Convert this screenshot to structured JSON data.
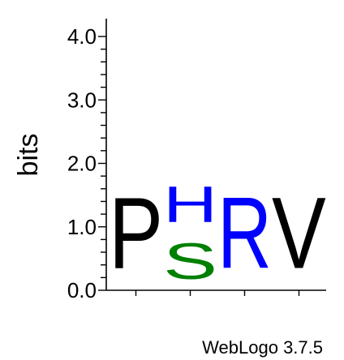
{
  "chart_data": {
    "type": "sequence-logo",
    "ylabel": "bits",
    "ylim": [
      0.0,
      4.0
    ],
    "y_ticks": [
      "0.0",
      "1.0",
      "2.0",
      "3.0",
      "4.0"
    ],
    "footer": "WebLogo 3.7.5",
    "positions": [
      {
        "stack": [
          {
            "letter": "P",
            "bits": 1.8,
            "color": "#000000"
          }
        ]
      },
      {
        "stack": [
          {
            "letter": "S",
            "bits": 0.9,
            "color": "#008000"
          },
          {
            "letter": "H",
            "bits": 0.9,
            "color": "#0000ff"
          }
        ]
      },
      {
        "stack": [
          {
            "letter": "R",
            "bits": 1.8,
            "color": "#0000ff"
          }
        ]
      },
      {
        "stack": [
          {
            "letter": "V",
            "bits": 1.8,
            "color": "#000000"
          }
        ]
      }
    ]
  }
}
